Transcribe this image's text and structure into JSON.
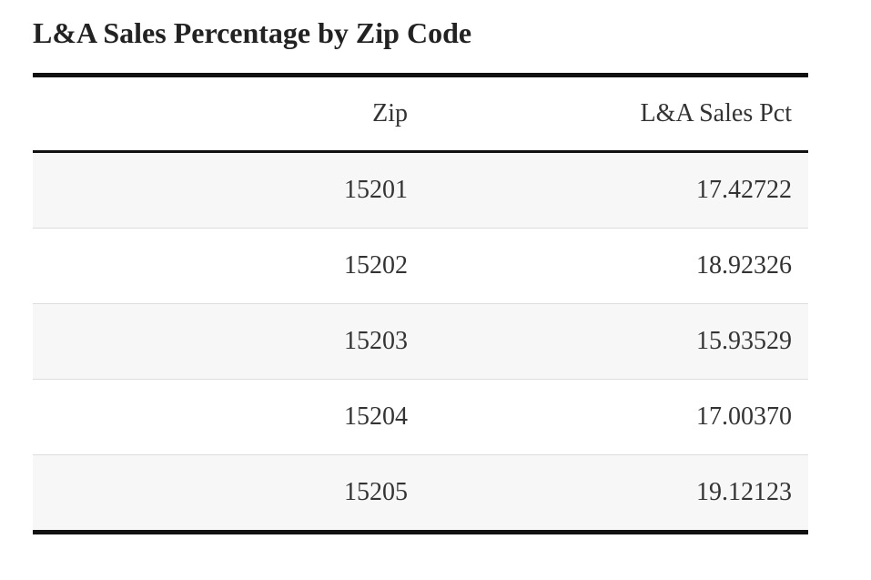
{
  "title": "L&A Sales Percentage by Zip Code",
  "table": {
    "headers": [
      "Zip",
      "L&A Sales Pct"
    ],
    "rows": [
      [
        "15201",
        "17.42722"
      ],
      [
        "15202",
        "18.92326"
      ],
      [
        "15203",
        "15.93529"
      ],
      [
        "15204",
        "17.00370"
      ],
      [
        "15205",
        "19.12123"
      ]
    ]
  }
}
